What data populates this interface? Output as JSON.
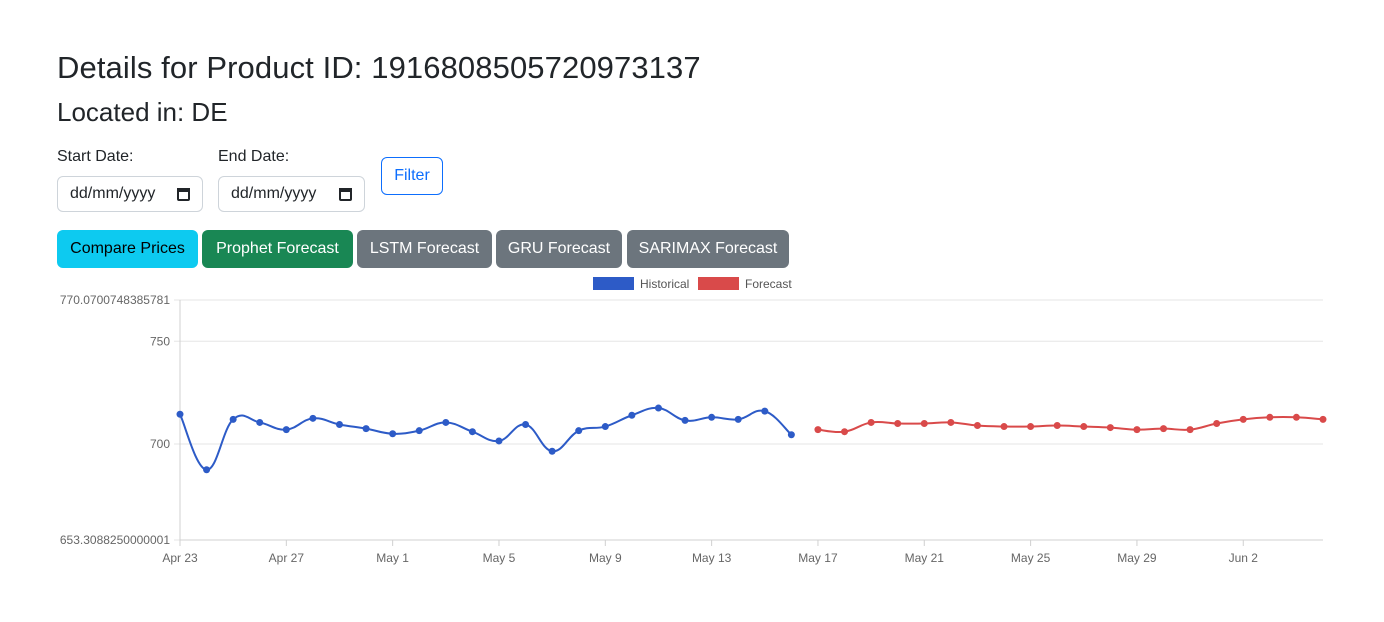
{
  "header": {
    "title": "Details for Product ID: 1916808505720973137",
    "location": "Located in: DE"
  },
  "filters": {
    "start_label": "Start Date:",
    "start_value": "dd/mm/yyyy",
    "end_label": "End Date:",
    "end_value": "dd/mm/yyyy",
    "filter_button": "Filter"
  },
  "tabs": [
    {
      "label": "Compare Prices",
      "color": "#0dcaf0",
      "text_color": "#000000"
    },
    {
      "label": "Prophet Forecast",
      "color": "#198754",
      "text_color": "#ffffff"
    },
    {
      "label": "LSTM Forecast",
      "color": "#6c757d",
      "text_color": "#ffffff"
    },
    {
      "label": "GRU Forecast",
      "color": "#6c757d",
      "text_color": "#ffffff"
    },
    {
      "label": "SARIMAX Forecast",
      "color": "#6c757d",
      "text_color": "#ffffff"
    }
  ],
  "chart_data": {
    "type": "line",
    "title": "",
    "xlabel": "",
    "ylabel": "",
    "ylim": [
      653.3088250000001,
      770.0700748385781
    ],
    "yticks": [
      {
        "value": 770.0700748385781,
        "label": "770.0700748385781"
      },
      {
        "value": 750,
        "label": "750"
      },
      {
        "value": 700,
        "label": "700"
      },
      {
        "value": 653.3088250000001,
        "label": "653.3088250000001"
      }
    ],
    "x_start": "2024-04-23",
    "x_end": "2024-06-05",
    "xticks": [
      {
        "date": "2024-04-23",
        "label": "Apr 23"
      },
      {
        "date": "2024-04-27",
        "label": "Apr 27"
      },
      {
        "date": "2024-05-01",
        "label": "May 1"
      },
      {
        "date": "2024-05-05",
        "label": "May 5"
      },
      {
        "date": "2024-05-09",
        "label": "May 9"
      },
      {
        "date": "2024-05-13",
        "label": "May 13"
      },
      {
        "date": "2024-05-17",
        "label": "May 17"
      },
      {
        "date": "2024-05-21",
        "label": "May 21"
      },
      {
        "date": "2024-05-25",
        "label": "May 25"
      },
      {
        "date": "2024-05-29",
        "label": "May 29"
      },
      {
        "date": "2024-06-02",
        "label": "Jun 2"
      }
    ],
    "legend_position": "top-center",
    "grid": true,
    "series": [
      {
        "name": "Historical",
        "color": "#2d5bc7",
        "points": [
          [
            "2024-04-23",
            714.5
          ],
          [
            "2024-04-24",
            687.5
          ],
          [
            "2024-04-25",
            712.0
          ],
          [
            "2024-04-26",
            710.5
          ],
          [
            "2024-04-27",
            707.0
          ],
          [
            "2024-04-28",
            712.5
          ],
          [
            "2024-04-29",
            709.5
          ],
          [
            "2024-04-30",
            707.5
          ],
          [
            "2024-05-01",
            705.0
          ],
          [
            "2024-05-02",
            706.5
          ],
          [
            "2024-05-03",
            710.5
          ],
          [
            "2024-05-04",
            706.0
          ],
          [
            "2024-05-05",
            701.5
          ],
          [
            "2024-05-06",
            709.5
          ],
          [
            "2024-05-07",
            696.5
          ],
          [
            "2024-05-08",
            706.5
          ],
          [
            "2024-05-09",
            708.5
          ],
          [
            "2024-05-10",
            714.0
          ],
          [
            "2024-05-11",
            717.5
          ],
          [
            "2024-05-12",
            711.5
          ],
          [
            "2024-05-13",
            713.0
          ],
          [
            "2024-05-14",
            712.0
          ],
          [
            "2024-05-15",
            716.0
          ],
          [
            "2024-05-16",
            704.5
          ]
        ]
      },
      {
        "name": "Forecast",
        "color": "#d94a4a",
        "points": [
          [
            "2024-05-17",
            707.0
          ],
          [
            "2024-05-18",
            706.0
          ],
          [
            "2024-05-19",
            710.5
          ],
          [
            "2024-05-20",
            710.0
          ],
          [
            "2024-05-21",
            710.0
          ],
          [
            "2024-05-22",
            710.5
          ],
          [
            "2024-05-23",
            709.0
          ],
          [
            "2024-05-24",
            708.5
          ],
          [
            "2024-05-25",
            708.5
          ],
          [
            "2024-05-26",
            709.0
          ],
          [
            "2024-05-27",
            708.5
          ],
          [
            "2024-05-28",
            708.0
          ],
          [
            "2024-05-29",
            707.0
          ],
          [
            "2024-05-30",
            707.5
          ],
          [
            "2024-05-31",
            707.0
          ],
          [
            "2024-06-01",
            710.0
          ],
          [
            "2024-06-02",
            712.0
          ],
          [
            "2024-06-03",
            713.0
          ],
          [
            "2024-06-04",
            713.0
          ],
          [
            "2024-06-05",
            712.0
          ]
        ]
      }
    ]
  }
}
